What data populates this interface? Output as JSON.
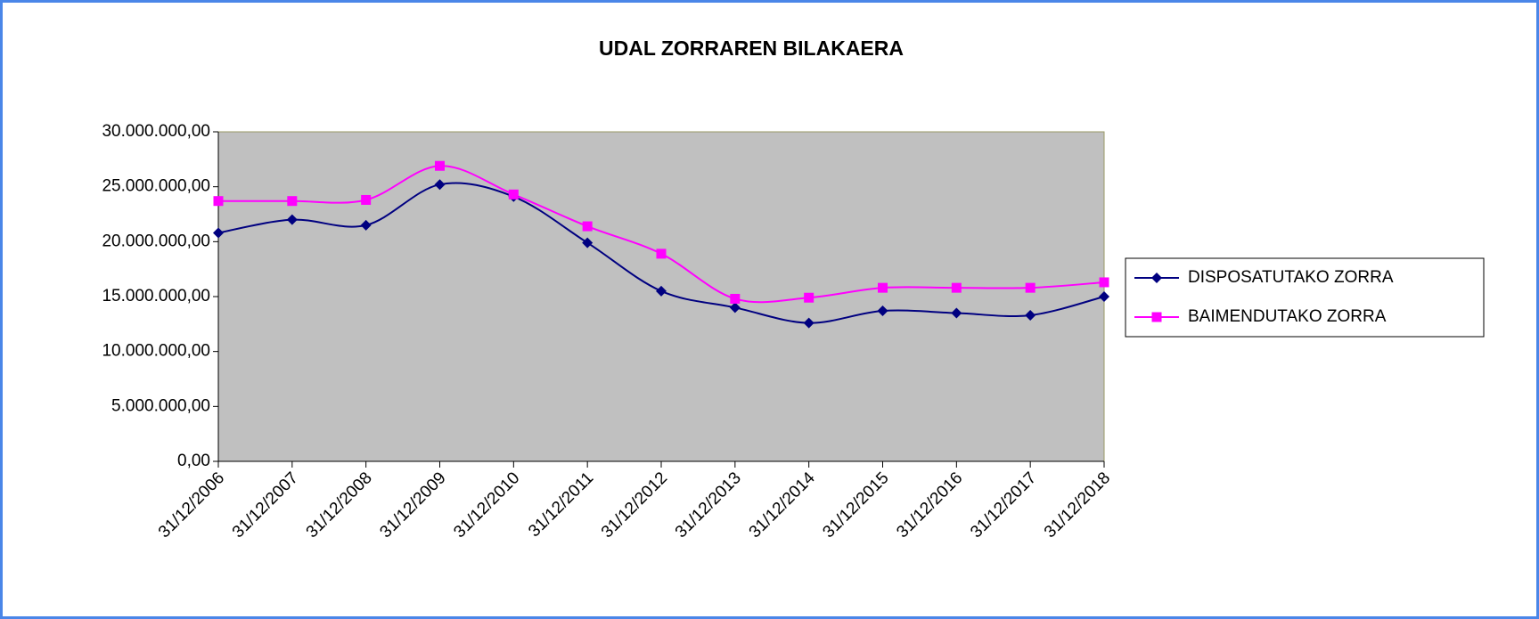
{
  "chart_data": {
    "type": "line",
    "title": "UDAL ZORRAREN BILAKAERA",
    "categories": [
      "31/12/2006",
      "31/12/2007",
      "31/12/2008",
      "31/12/2009",
      "31/12/2010",
      "31/12/2011",
      "31/12/2012",
      "31/12/2013",
      "31/12/2014",
      "31/12/2015",
      "31/12/2016",
      "31/12/2017",
      "31/12/2018"
    ],
    "series": [
      {
        "name": "DISPOSATUTAKO ZORRA",
        "color": "#000080",
        "marker": "diamond",
        "values": [
          20800000,
          22000000,
          21500000,
          25200000,
          24100000,
          19900000,
          15500000,
          14000000,
          12600000,
          13700000,
          13500000,
          13300000,
          15000000
        ]
      },
      {
        "name": "BAIMENDUTAKO ZORRA",
        "color": "#ff00ff",
        "marker": "square",
        "values": [
          23700000,
          23700000,
          23800000,
          26900000,
          24300000,
          21400000,
          18900000,
          14800000,
          14900000,
          15800000,
          15800000,
          15800000,
          16300000
        ]
      }
    ],
    "ylim": [
      0,
      30000000
    ],
    "yticks": [
      {
        "value": 0,
        "label": "0,00"
      },
      {
        "value": 5000000,
        "label": "5.000.000,00"
      },
      {
        "value": 10000000,
        "label": "10.000.000,00"
      },
      {
        "value": 15000000,
        "label": "15.000.000,00"
      },
      {
        "value": 20000000,
        "label": "20.000.000,00"
      },
      {
        "value": 25000000,
        "label": "25.000.000,00"
      },
      {
        "value": 30000000,
        "label": "30.000.000,00"
      }
    ],
    "plot_background": "#c0c0c0",
    "smooth": true,
    "legend": "right"
  }
}
